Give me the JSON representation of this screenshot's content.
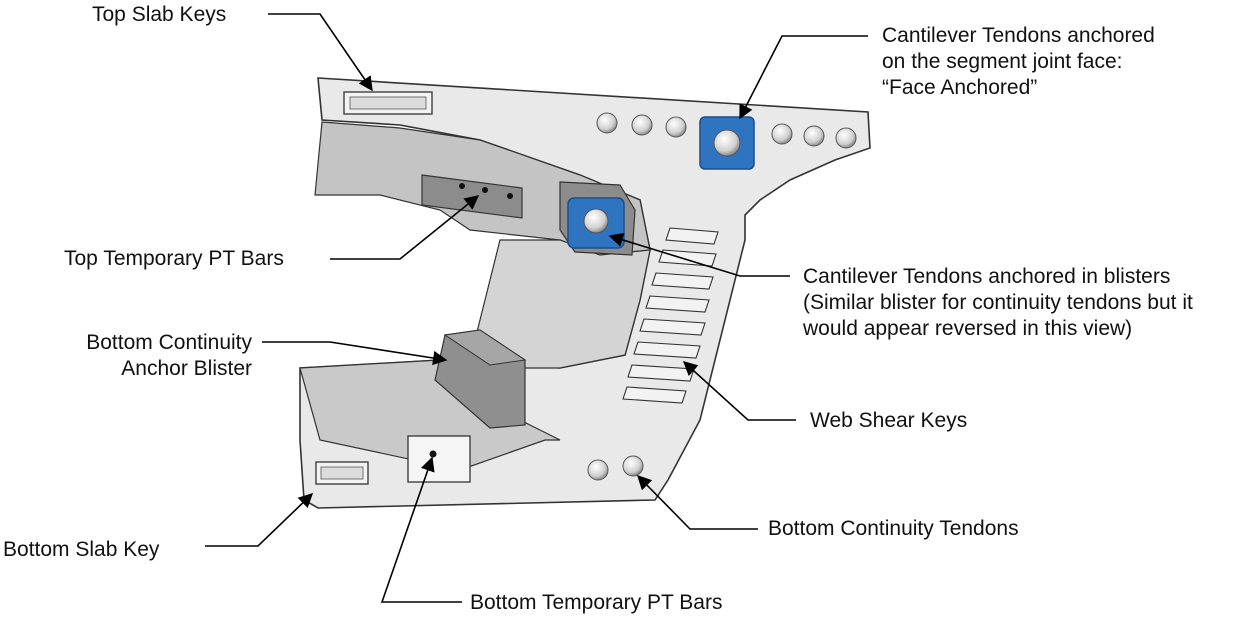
{
  "labels": {
    "top_slab_keys": "Top Slab Keys",
    "cantilever_face": [
      "Cantilever Tendons anchored",
      "on the segment joint face:",
      "“Face Anchored”"
    ],
    "top_temp_pt_bars": "Top Temporary PT Bars",
    "cantilever_blisters": [
      "Cantilever Tendons anchored in blisters",
      "(Similar blister for continuity tendons but it",
      "would appear reversed in this view)"
    ],
    "bottom_continuity_blister": [
      "Bottom Continuity",
      "Anchor Blister"
    ],
    "web_shear_keys": "Web Shear Keys",
    "bottom_continuity_tendons": "Bottom Continuity Tendons",
    "bottom_slab_key": "Bottom Slab Key",
    "bottom_temp_pt_bars": "Bottom Temporary PT Bars"
  },
  "colors": {
    "face": "#e9e9e9",
    "inner_dark": "#b8b8b8",
    "inner_mid": "#cfcfcf",
    "blister": "#8f8f8f",
    "anchor_blue": "#2f74c0",
    "outline": "#333333"
  }
}
